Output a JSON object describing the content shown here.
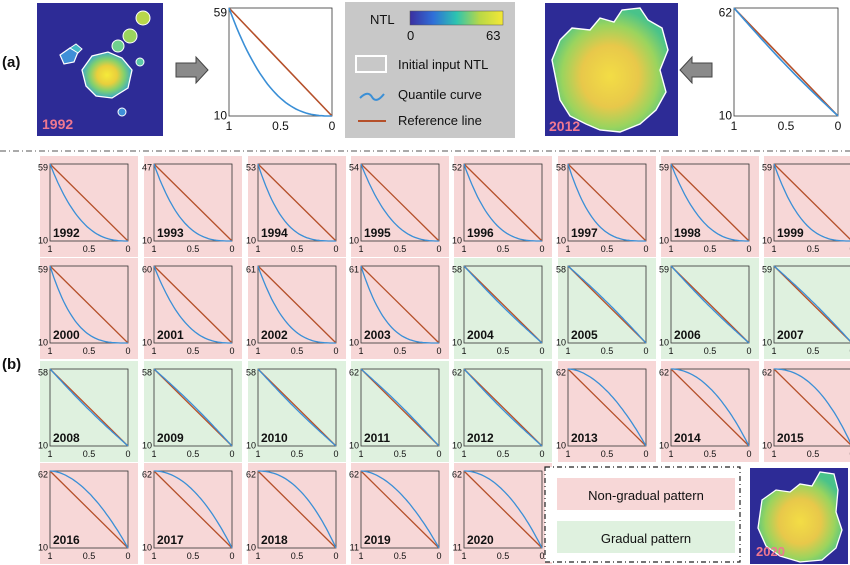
{
  "panel_labels": {
    "a": "(a)",
    "b": "(b)"
  },
  "legend": {
    "ntl_label": "NTL",
    "ntl_min": "0",
    "ntl_max": "63",
    "initial_input": "Initial input NTL",
    "quantile_curve": "Quantile curve",
    "reference_line": "Reference line"
  },
  "pattern_legend": {
    "non_gradual": "Non-gradual pattern",
    "gradual": "Gradual pattern"
  },
  "colors": {
    "non_gradual_bg": "#f7d7d7",
    "gradual_bg": "#dff1df",
    "quantile_curve": "#3a8fd6",
    "reference_line": "#b5502a",
    "legend_box_bg": "#c8c8c8",
    "map_bg": "#2d2b96"
  },
  "top_row": {
    "year_1992": "1992",
    "year_2012": "2012",
    "plot_1992": {
      "ymax": "59",
      "ymin": "10",
      "xticks": [
        "1",
        "0.5",
        "0"
      ]
    },
    "plot_2012": {
      "ymax": "62",
      "ymin": "10",
      "xticks": [
        "1",
        "0.5",
        "0"
      ]
    }
  },
  "corner_map_year": "2020",
  "chart_data": {
    "type": "line",
    "xlabel": "",
    "ylabel": "",
    "x_ticks": [
      "1",
      "0.5",
      "0"
    ],
    "panels": [
      {
        "year": "1992",
        "ymax": 59,
        "ymin": 10,
        "pattern": "non-gradual",
        "shape": "concave"
      },
      {
        "year": "1993",
        "ymax": 47,
        "ymin": 10,
        "pattern": "non-gradual",
        "shape": "concave"
      },
      {
        "year": "1994",
        "ymax": 53,
        "ymin": 10,
        "pattern": "non-gradual",
        "shape": "concave"
      },
      {
        "year": "1995",
        "ymax": 54,
        "ymin": 10,
        "pattern": "non-gradual",
        "shape": "concave"
      },
      {
        "year": "1996",
        "ymax": 52,
        "ymin": 10,
        "pattern": "non-gradual",
        "shape": "concave"
      },
      {
        "year": "1997",
        "ymax": 58,
        "ymin": 10,
        "pattern": "non-gradual",
        "shape": "concave"
      },
      {
        "year": "1998",
        "ymax": 59,
        "ymin": 10,
        "pattern": "non-gradual",
        "shape": "concave"
      },
      {
        "year": "1999",
        "ymax": 59,
        "ymin": 10,
        "pattern": "non-gradual",
        "shape": "concave"
      },
      {
        "year": "2000",
        "ymax": 59,
        "ymin": 10,
        "pattern": "non-gradual",
        "shape": "concave"
      },
      {
        "year": "2001",
        "ymax": 60,
        "ymin": 10,
        "pattern": "non-gradual",
        "shape": "concave"
      },
      {
        "year": "2002",
        "ymax": 61,
        "ymin": 10,
        "pattern": "non-gradual",
        "shape": "concave"
      },
      {
        "year": "2003",
        "ymax": 61,
        "ymin": 10,
        "pattern": "non-gradual",
        "shape": "concave"
      },
      {
        "year": "2004",
        "ymax": 58,
        "ymin": 10,
        "pattern": "gradual",
        "shape": "linear"
      },
      {
        "year": "2005",
        "ymax": 58,
        "ymin": 10,
        "pattern": "gradual",
        "shape": "linear"
      },
      {
        "year": "2006",
        "ymax": 59,
        "ymin": 10,
        "pattern": "gradual",
        "shape": "linear"
      },
      {
        "year": "2007",
        "ymax": 59,
        "ymin": 10,
        "pattern": "gradual",
        "shape": "linear"
      },
      {
        "year": "2008",
        "ymax": 58,
        "ymin": 10,
        "pattern": "gradual",
        "shape": "linear"
      },
      {
        "year": "2009",
        "ymax": 58,
        "ymin": 10,
        "pattern": "gradual",
        "shape": "linear"
      },
      {
        "year": "2010",
        "ymax": 58,
        "ymin": 10,
        "pattern": "gradual",
        "shape": "linear"
      },
      {
        "year": "2011",
        "ymax": 62,
        "ymin": 10,
        "pattern": "gradual",
        "shape": "linear"
      },
      {
        "year": "2012",
        "ymax": 62,
        "ymin": 10,
        "pattern": "gradual",
        "shape": "linear"
      },
      {
        "year": "2013",
        "ymax": 62,
        "ymin": 10,
        "pattern": "non-gradual",
        "shape": "convex"
      },
      {
        "year": "2014",
        "ymax": 62,
        "ymin": 10,
        "pattern": "non-gradual",
        "shape": "convex"
      },
      {
        "year": "2015",
        "ymax": 62,
        "ymin": 10,
        "pattern": "non-gradual",
        "shape": "convex"
      },
      {
        "year": "2016",
        "ymax": 62,
        "ymin": 10,
        "pattern": "non-gradual",
        "shape": "convex"
      },
      {
        "year": "2017",
        "ymax": 62,
        "ymin": 10,
        "pattern": "non-gradual",
        "shape": "convex"
      },
      {
        "year": "2018",
        "ymax": 62,
        "ymin": 10,
        "pattern": "non-gradual",
        "shape": "convex"
      },
      {
        "year": "2019",
        "ymax": 62,
        "ymin": 11,
        "pattern": "non-gradual",
        "shape": "convex"
      },
      {
        "year": "2020",
        "ymax": 62,
        "ymin": 11,
        "pattern": "non-gradual",
        "shape": "convex"
      }
    ]
  }
}
